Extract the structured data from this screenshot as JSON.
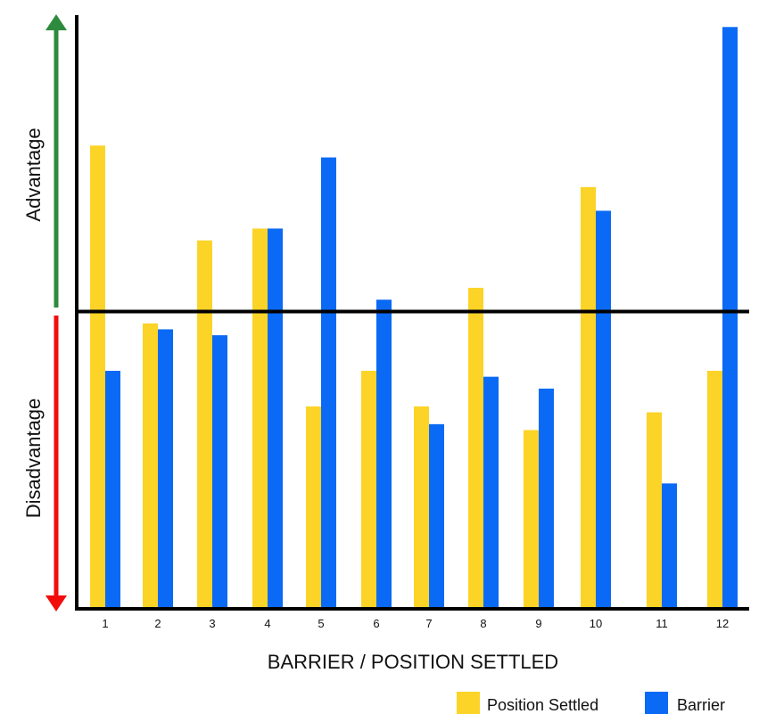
{
  "chart_data": {
    "type": "bar",
    "xlabel": "BARRIER / POSITION SETTLED",
    "ylabel_top": "Advantage",
    "ylabel_bottom": "Disadvantage",
    "categories": [
      "1",
      "2",
      "3",
      "4",
      "5",
      "6",
      "7",
      "8",
      "9",
      "10",
      "11",
      "12"
    ],
    "series": [
      {
        "name": "Position Settled",
        "color": "#FCD327",
        "values": [
          0.78,
          0.48,
          0.62,
          0.64,
          0.34,
          0.4,
          0.34,
          0.54,
          0.3,
          0.71,
          0.33,
          0.4
        ]
      },
      {
        "name": "Barrier",
        "color": "#0A6AF5",
        "values": [
          0.4,
          0.47,
          0.46,
          0.64,
          0.76,
          0.52,
          0.31,
          0.39,
          0.37,
          0.67,
          0.21,
          0.98
        ]
      }
    ],
    "ylim": [
      0,
      1
    ],
    "baseline": 0.5,
    "grid": false,
    "legend_position": "bottom-right",
    "arrow_up_color": "#2E8B3E",
    "arrow_down_color": "#F20D0D",
    "axis_color": "#000000"
  }
}
